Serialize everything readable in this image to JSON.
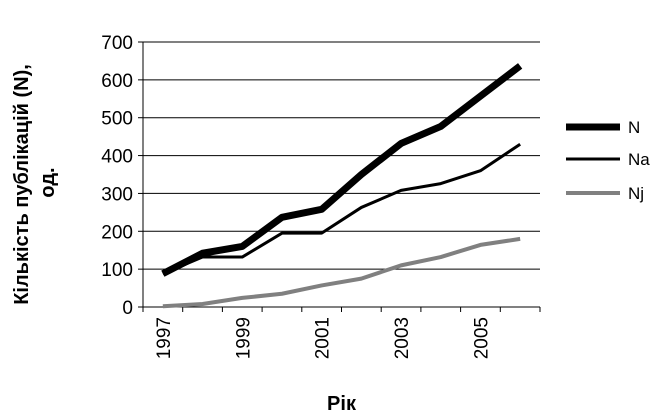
{
  "chart_data": {
    "type": "line",
    "x": [
      1997,
      1998,
      1999,
      2000,
      2001,
      2002,
      2003,
      2004,
      2005,
      2006
    ],
    "x_tick_labels": [
      "1997",
      "1999",
      "2001",
      "2003",
      "2005"
    ],
    "ylim": [
      0,
      700
    ],
    "y_ticks": [
      0,
      100,
      200,
      300,
      400,
      500,
      600,
      700
    ],
    "xlabel": "Рік",
    "ylabel_line1": "Кількість публікацій (N),",
    "ylabel_line2": "од.",
    "grid": "horizontal",
    "legend_position": "right",
    "series": [
      {
        "name": "N",
        "color": "#000000",
        "values": [
          88,
          142,
          160,
          237,
          258,
          350,
          432,
          477,
          557,
          637
        ]
      },
      {
        "name": "Na",
        "color": "#000000",
        "values": [
          88,
          132,
          132,
          195,
          195,
          263,
          308,
          326,
          360,
          430
        ]
      },
      {
        "name": "Nj",
        "color": "#808080",
        "values": [
          2,
          8,
          24,
          35,
          57,
          75,
          110,
          132,
          164,
          180
        ]
      }
    ]
  }
}
